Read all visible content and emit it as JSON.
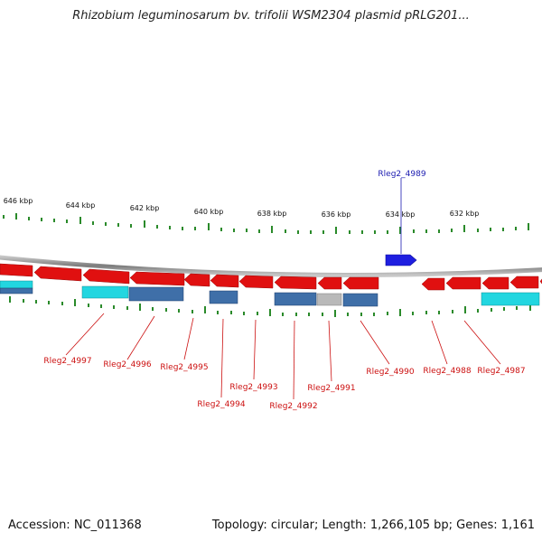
{
  "title": "Rhizobium leguminosarum bv. trifolii WSM2304 plasmid pRLG201...",
  "footer": {
    "accession": "Accession: NC_011368",
    "summary": "Topology: circular; Length: 1,266,105 bp; Genes: 1,161"
  },
  "scale_labels": [
    "646 kbp",
    "644 kbp",
    "642 kbp",
    "640 kbp",
    "638 kbp",
    "636 kbp",
    "634 kbp",
    "632 kbp"
  ],
  "top_labels": [
    "Rleg2_4989"
  ],
  "bottom_labels": [
    "Rleg2_4997",
    "Rleg2_4996",
    "Rleg2_4995",
    "Rleg2_4994",
    "Rleg2_4993",
    "Rleg2_4992",
    "Rleg2_4991",
    "Rleg2_4990",
    "Rleg2_4988",
    "Rleg2_4987"
  ],
  "colors": {
    "gene_forward": "#1f1fe0",
    "gene_reverse": "#e01010",
    "cds_cyan": "#22d6e0",
    "cds_steel": "#3f6fa8",
    "cds_grey": "#b9b9b9",
    "top_label": "#1a1ab0",
    "bottom_label": "#cc1010",
    "tick": "#2a8a2a",
    "backbone": "#8a8a8a"
  }
}
